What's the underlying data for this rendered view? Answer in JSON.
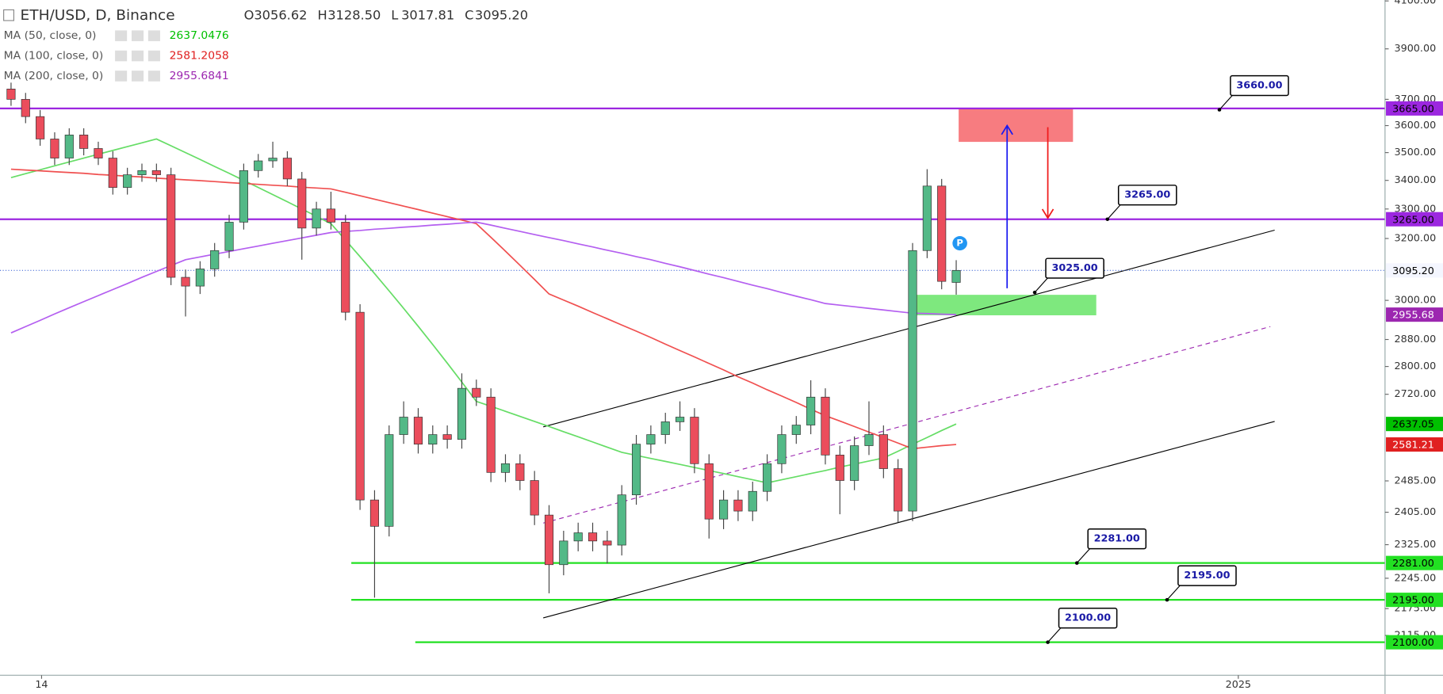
{
  "chart_data": {
    "type": "candlestick",
    "title": "ETH/USD, D, Binance",
    "header_prefixes": [
      "O",
      "H",
      "L",
      "C"
    ],
    "header_value_labels": [
      "3056.62",
      "3128.50",
      "3017.81",
      "3095.20"
    ],
    "log_scale": true,
    "grid": false,
    "xlim": [
      -0.76,
      94.49
    ],
    "ylim": [
      2029,
      4104
    ],
    "yticks": [
      {
        "value": 4100,
        "label": "4100.00"
      },
      {
        "value": 3900,
        "label": "3900.00"
      },
      {
        "value": 3700,
        "label": "3700.00"
      },
      {
        "value": 3600,
        "label": "3600.00"
      },
      {
        "value": 3500,
        "label": "3500.00"
      },
      {
        "value": 3400,
        "label": "3400.00"
      },
      {
        "value": 3300,
        "label": "3300.00"
      },
      {
        "value": 3200,
        "label": "3200.00"
      },
      {
        "value": 3000,
        "label": "3000.00"
      },
      {
        "value": 2880,
        "label": "2880.00"
      },
      {
        "value": 2800,
        "label": "2800.00"
      },
      {
        "value": 2720,
        "label": "2720.00"
      },
      {
        "value": 2485,
        "label": "2485.00"
      },
      {
        "value": 2405,
        "label": "2405.00"
      },
      {
        "value": 2325,
        "label": "2325.00"
      },
      {
        "value": 2245,
        "label": "2245.00"
      },
      {
        "value": 2175,
        "label": "2175.00"
      },
      {
        "value": 2115,
        "label": "2115.00"
      }
    ],
    "x_labels": [
      {
        "index": 2.1,
        "label": "14"
      },
      {
        "index": 84.4,
        "label": "2025"
      }
    ],
    "up_color": "#53b987",
    "down_color": "#eb4d5c",
    "open": [
      3740,
      3700,
      3634,
      3550,
      3480,
      3565,
      3515,
      3480,
      3375,
      3420,
      3435,
      3420,
      3073,
      3045,
      3100,
      3160,
      3255,
      3435,
      3470,
      3480,
      3405,
      3235,
      3300,
      3255,
      2963,
      2436,
      2370,
      2608,
      2656,
      2582,
      2608,
      2595,
      2737,
      2712,
      2507,
      2530,
      2486,
      2398,
      2277,
      2334,
      2354,
      2334,
      2324,
      2449,
      2582,
      2608,
      2643,
      2656,
      2530,
      2388,
      2436,
      2408,
      2458,
      2530,
      2608,
      2634,
      2712,
      2553,
      2486,
      2578,
      2608,
      2517,
      2408,
      3160,
      3380,
      3056.62
    ],
    "high": [
      3765,
      3725,
      3659,
      3575,
      3590,
      3590,
      3540,
      3505,
      3445,
      3460,
      3460,
      3445,
      3098,
      3125,
      3185,
      3280,
      3460,
      3495,
      3540,
      3505,
      3430,
      3325,
      3360,
      3280,
      2988,
      2461,
      2633,
      2700,
      2681,
      2633,
      2633,
      2780,
      2762,
      2737,
      2555,
      2555,
      2511,
      2423,
      2359,
      2379,
      2379,
      2359,
      2474,
      2607,
      2633,
      2668,
      2700,
      2681,
      2555,
      2461,
      2461,
      2483,
      2555,
      2633,
      2659,
      2760,
      2737,
      2578,
      2603,
      2700,
      2633,
      2542,
      3185,
      3440,
      3405,
      3128.5
    ],
    "low": [
      3675,
      3609,
      3525,
      3455,
      3455,
      3490,
      3455,
      3350,
      3350,
      3395,
      3395,
      3048,
      2950,
      3020,
      3075,
      3135,
      3230,
      3410,
      3445,
      3380,
      3130,
      3210,
      3230,
      2938,
      2411,
      2200,
      2345,
      2583,
      2557,
      2557,
      2570,
      2570,
      2687,
      2482,
      2482,
      2461,
      2373,
      2210,
      2252,
      2309,
      2309,
      2280,
      2299,
      2424,
      2557,
      2583,
      2618,
      2505,
      2340,
      2363,
      2383,
      2383,
      2433,
      2505,
      2583,
      2609,
      2528,
      2400,
      2461,
      2553,
      2492,
      2380,
      2383,
      3135,
      3035,
      3017.81
    ],
    "close": [
      3700,
      3634,
      3550,
      3480,
      3565,
      3515,
      3480,
      3375,
      3420,
      3435,
      3420,
      3073,
      3045,
      3100,
      3160,
      3255,
      3435,
      3470,
      3480,
      3405,
      3235,
      3300,
      3255,
      2963,
      2436,
      2370,
      2608,
      2656,
      2582,
      2608,
      2595,
      2737,
      2712,
      2507,
      2530,
      2486,
      2398,
      2277,
      2334,
      2354,
      2334,
      2324,
      2449,
      2582,
      2608,
      2643,
      2656,
      2530,
      2388,
      2436,
      2408,
      2458,
      2530,
      2608,
      2634,
      2712,
      2553,
      2486,
      2578,
      2608,
      2517,
      2408,
      3160,
      3380,
      3060,
      3095.2
    ],
    "last_price_label": "3095.20",
    "series": [
      {
        "name": "MA (50, close, 0)",
        "color": "#66dd66",
        "text_color": "#00c000",
        "axis_label": "2637.05",
        "values": [
          3410,
          3424,
          3438,
          3452,
          3466,
          3480,
          3494,
          3508,
          3522,
          3536,
          3550,
          3525,
          3500,
          3475,
          3450,
          3425,
          3400,
          3375,
          3350,
          3325,
          3300,
          3275,
          3250,
          3195,
          3140,
          3085,
          3030,
          2975,
          2920,
          2865,
          2810,
          2755,
          2700,
          2686,
          2672,
          2658,
          2644,
          2630,
          2616,
          2602,
          2588,
          2574,
          2560,
          2552,
          2544,
          2536,
          2528,
          2520,
          2512,
          2504,
          2496,
          2488,
          2480,
          2488,
          2496,
          2504,
          2512,
          2521,
          2529,
          2537,
          2545,
          2563,
          2582,
          2600,
          2619,
          2637.0476
        ]
      },
      {
        "name": "MA (100, close, 0)",
        "color": "#f05050",
        "text_color": "#e02020",
        "axis_label": "2581.21",
        "values": [
          3440,
          3437,
          3434,
          3431,
          3428,
          3425,
          3421,
          3418,
          3415,
          3412,
          3408,
          3405,
          3402,
          3399,
          3396,
          3392,
          3389,
          3386,
          3383,
          3380,
          3376,
          3373,
          3370,
          3358,
          3346,
          3334,
          3322,
          3310,
          3298,
          3286,
          3274,
          3262,
          3250,
          3204,
          3158,
          3112,
          3066,
          3020,
          3001,
          2982,
          2962,
          2943,
          2924,
          2905,
          2886,
          2866,
          2847,
          2828,
          2809,
          2790,
          2770,
          2752,
          2733,
          2715,
          2697,
          2678,
          2660,
          2645,
          2630,
          2615,
          2600,
          2585,
          2570,
          2574,
          2578,
          2581.2058
        ]
      },
      {
        "name": "MA (200, close, 0)",
        "color": "#b45ff0",
        "text_color": "#9c27b0",
        "axis_label": "2955.68",
        "values": [
          2900,
          2919,
          2938,
          2958,
          2977,
          2996,
          3015,
          3034,
          3053,
          3073,
          3092,
          3111,
          3130,
          3139,
          3148,
          3157,
          3166,
          3175,
          3184,
          3193,
          3202,
          3211,
          3220,
          3224,
          3227,
          3231,
          3234,
          3238,
          3241,
          3245,
          3248,
          3252,
          3255,
          3245,
          3234,
          3224,
          3213,
          3203,
          3193,
          3182,
          3172,
          3161,
          3151,
          3140,
          3130,
          3118,
          3107,
          3095,
          3083,
          3072,
          3060,
          3048,
          3037,
          3025,
          3013,
          3002,
          2990,
          2985,
          2980,
          2975,
          2970,
          2965,
          2960,
          2959,
          2957,
          2955.6841
        ]
      }
    ],
    "levels": [
      {
        "value": 3665,
        "label": "3665.00",
        "color": "#9c27e0",
        "from": -0.76
      },
      {
        "value": 3265,
        "label": "3265.00",
        "color": "#9c27e0",
        "from": -0.76
      },
      {
        "value": 2281,
        "label": "2281.00",
        "color": "#22e022",
        "from": 23.4
      },
      {
        "value": 2195,
        "label": "2195.00",
        "color": "#22e022",
        "from": 23.4
      },
      {
        "value": 2100,
        "label": "2100.00",
        "color": "#22e022",
        "from": 27.8
      }
    ],
    "trendlines": [
      {
        "x": [
          36.6,
          86.9
        ],
        "y": [
          2629,
          3228
        ],
        "color": "#000000",
        "dashed": false
      },
      {
        "x": [
          36.6,
          86.9
        ],
        "y": [
          2154,
          2644
        ],
        "color": "#000000",
        "dashed": false
      },
      {
        "x": [
          36.6,
          86.6
        ],
        "y": [
          2378,
          2919
        ],
        "color": "#9c27b0",
        "dashed": true
      }
    ],
    "zones": [
      {
        "x": [
          65.2,
          73.0
        ],
        "y": [
          3541,
          3665
        ],
        "color": "#f77c80"
      },
      {
        "x": [
          62.3,
          74.6
        ],
        "y": [
          2955,
          3016
        ],
        "color": "#7ee87e"
      }
    ],
    "arrows": [
      {
        "x": 68.5,
        "y": [
          3038,
          3600
        ],
        "color": "#1a1af0"
      },
      {
        "x": 71.3,
        "y": [
          3594,
          3269
        ],
        "color": "#f01a1a"
      }
    ],
    "callouts": [
      {
        "x": 83.1,
        "value": 3660,
        "label": "3660.00"
      },
      {
        "x": 75.4,
        "value": 3265,
        "label": "3265.00"
      },
      {
        "x": 70.4,
        "value": 3025,
        "label": "3025.00"
      },
      {
        "x": 73.3,
        "value": 2281,
        "label": "2281.00"
      },
      {
        "x": 79.5,
        "value": 2195,
        "label": "2195.00"
      },
      {
        "x": 71.3,
        "value": 2100,
        "label": "2100.00"
      }
    ]
  }
}
